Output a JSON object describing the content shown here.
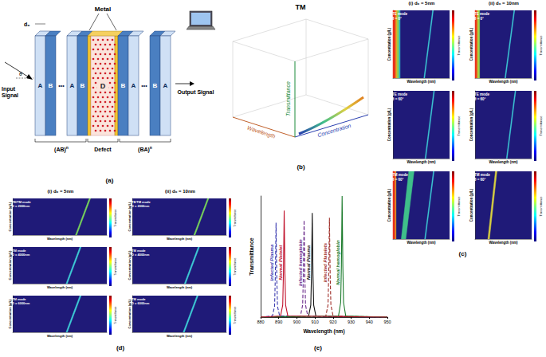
{
  "figure": {
    "a": {
      "label": "(a)",
      "metal": "Metal",
      "input": "Input Signal",
      "output": "Output Signal",
      "left_layers": [
        "A",
        "B",
        "•••",
        "A",
        "B"
      ],
      "defect_layer": "D",
      "right_layers": [
        "B",
        "A",
        "•••",
        "B",
        "A"
      ],
      "left_period": "(AB)",
      "right_period": "(BA)",
      "exponent": "n",
      "defect": "Defect",
      "angle": "θ",
      "thickness": "d₀"
    },
    "b": {
      "label": "(b)",
      "title": "TM",
      "z_axis": "Transmittance",
      "x_axis": "Wavelength",
      "y_axis": "Concentration"
    }
  },
  "chart_data": [
    {
      "type": "heatmap",
      "label": "(c)",
      "columns": [
        "(i) d₀ = 5nm",
        "(ii) d₀ = 10nm"
      ],
      "xlabel": "Wavelength (nm)",
      "ylabel": "Concentration (g/L)",
      "colorbar_label": "Transmittance",
      "xlim": [
        850,
        1000
      ],
      "ylim": [
        0,
        100
      ],
      "tick_labels": false,
      "panels": [
        {
          "title": [
            "TE mode",
            "θ = 0°"
          ],
          "color": "#1f1a78",
          "bands": [
            {
              "lower": [
                850,
                857
              ],
              "upper": [
                850,
                857
              ],
              "color": "#e8301c"
            },
            {
              "lower": [
                857,
                861
              ],
              "upper": [
                857,
                861
              ],
              "color": "#f0a020"
            },
            {
              "lower": [
                861,
                866
              ],
              "upper": [
                861,
                866
              ],
              "color": "#9ad84a"
            },
            {
              "lower": [
                866,
                869
              ],
              "upper": [
                866,
                869
              ],
              "color": "#2fb0c8"
            },
            {
              "lower": [
                932,
                934
              ],
              "upper": [
                955,
                957
              ],
              "color": "#3fd0d8"
            }
          ]
        },
        {
          "title": [
            "TE mode",
            "θ = 0°"
          ],
          "color": "#1f1a78",
          "bands": [
            {
              "lower": [
                850,
                855
              ],
              "upper": [
                850,
                855
              ],
              "color": "#e8301c"
            },
            {
              "lower": [
                855,
                858
              ],
              "upper": [
                855,
                858
              ],
              "color": "#f0a020"
            },
            {
              "lower": [
                858,
                862
              ],
              "upper": [
                858,
                862
              ],
              "color": "#9ad84a"
            },
            {
              "lower": [
                929,
                931
              ],
              "upper": [
                953,
                955
              ],
              "color": "#3fd0d8"
            }
          ]
        },
        {
          "title": [
            "TE mode",
            "θ = 60°"
          ],
          "color": "#1f1a78",
          "bands": [
            {
              "lower": [
                935,
                937
              ],
              "upper": [
                958,
                960
              ],
              "color": "#3fd0d8"
            }
          ]
        },
        {
          "title": [
            "TE mode",
            "θ = 60°"
          ],
          "color": "#1f1a78",
          "bands": [
            {
              "lower": [
                933,
                935
              ],
              "upper": [
                956,
                958
              ],
              "color": "#3fd0d8"
            }
          ]
        },
        {
          "title": [
            "TM mode",
            "θ = 60°"
          ],
          "color": "#1f1a78",
          "bands": [
            {
              "lower": [
                850,
                856
              ],
              "upper": [
                850,
                856
              ],
              "color": "#e8301c"
            },
            {
              "lower": [
                856,
                858
              ],
              "upper": [
                856,
                858
              ],
              "color": "#f0a020"
            },
            {
              "lower": [
                872,
                884
              ],
              "upper": [
                892,
                906
              ],
              "color": "#3fbf8a"
            },
            {
              "lower": [
                934,
                936
              ],
              "upper": [
                957,
                959
              ],
              "color": "#3fd0d8"
            }
          ]
        },
        {
          "title": [
            "TM mode",
            "θ = 60°"
          ],
          "color": "#1f1a78",
          "bands": [
            {
              "lower": [
                884,
                888
              ],
              "upper": [
                904,
                908
              ],
              "color": "#d8d040"
            }
          ]
        }
      ]
    },
    {
      "type": "heatmap",
      "label": "(d)",
      "columns": [
        "(i) d₀ = 5nm",
        "(ii) d₀ = 10nm"
      ],
      "xlabel": "Wavelength (nm)",
      "ylabel": "Concentration (g/L)",
      "colorbar_label": "Transmittance",
      "xlim": [
        850,
        1000
      ],
      "ylim": [
        0,
        100
      ],
      "tick_labels": false,
      "panels": [
        {
          "title": [
            "TE/TM mode",
            "D = 2000nm"
          ],
          "color": "#1f1a78",
          "bands": [
            {
              "lower": [
                950,
                952
              ],
              "upper": [
                972,
                974
              ],
              "color": "#7ad85a"
            }
          ]
        },
        {
          "title": [
            "TE/TM mode",
            "D = 2000nm"
          ],
          "color": "#1f1a78",
          "bands": [
            {
              "lower": [
                948,
                950
              ],
              "upper": [
                970,
                972
              ],
              "color": "#7ad85a"
            }
          ]
        },
        {
          "title": [
            "TM mode",
            "D = 4000nm"
          ],
          "color": "#1f1a78",
          "bands": [
            {
              "lower": [
                935,
                937
              ],
              "upper": [
                957,
                959
              ],
              "color": "#3fd0d8"
            }
          ]
        },
        {
          "title": [
            "TM mode",
            "D = 4000nm"
          ],
          "color": "#1f1a78",
          "bands": [
            {
              "lower": [
                933,
                935
              ],
              "upper": [
                955,
                957
              ],
              "color": "#3fd0d8"
            }
          ]
        },
        {
          "title": [
            "TM mode",
            "D = 6000nm"
          ],
          "color": "#1f1a78",
          "bands": [
            {
              "lower": [
                935,
                937
              ],
              "upper": [
                957,
                959
              ],
              "color": "#3fd0d8"
            }
          ]
        },
        {
          "title": [
            "TM mode",
            "D = 6000nm"
          ],
          "color": "#1f1a78",
          "bands": [
            {
              "lower": [
                931,
                933
              ],
              "upper": [
                953,
                955
              ],
              "color": "#3fd0d8"
            }
          ]
        }
      ]
    },
    {
      "type": "line",
      "label": "(e)",
      "xlabel": "Wavelength (nm)",
      "ylabel": "Transmittance",
      "xlim": [
        880,
        950
      ],
      "xticks": [
        880,
        890,
        900,
        910,
        920,
        930,
        940,
        950
      ],
      "ylim": [
        0,
        1
      ],
      "tick_labels": "x",
      "grid": false,
      "series": [
        {
          "name": "Infected Plasma",
          "color": "#3b3bb0",
          "line_style": "dashed",
          "x": [
            880,
            886.5,
            887.7,
            888.1,
            888.5,
            888.9,
            889.3,
            890.5,
            950
          ],
          "values": [
            0,
            0.01,
            0.09,
            0.33,
            0.78,
            0.33,
            0.09,
            0.01,
            0
          ]
        },
        {
          "name": "Infected hemoglobin",
          "color": "#6a2a8a",
          "line_style": "dashed",
          "x": [
            880,
            902,
            903.2,
            903.6,
            904,
            904.4,
            904.8,
            906,
            950
          ],
          "values": [
            0,
            0.01,
            0.1,
            0.34,
            0.8,
            0.34,
            0.1,
            0.01,
            0
          ]
        },
        {
          "name": "Normal Plasma",
          "color": "#111111",
          "line_style": "solid",
          "x": [
            880,
            906.5,
            907.7,
            908.1,
            908.5,
            908.9,
            909.3,
            910.5,
            950
          ],
          "values": [
            0,
            0.01,
            0.1,
            0.36,
            0.86,
            0.36,
            0.1,
            0.01,
            0
          ]
        },
        {
          "name": "Infected Platelets",
          "color": "#a0302a",
          "line_style": "dashed",
          "x": [
            880,
            916,
            917.2,
            917.6,
            918,
            918.4,
            918.8,
            920,
            950
          ],
          "values": [
            0,
            0.01,
            0.1,
            0.35,
            0.82,
            0.35,
            0.1,
            0.01,
            0
          ]
        },
        {
          "name": "Normal hemoglobin",
          "color": "#1a7a2a",
          "line_style": "solid",
          "x": [
            880,
            923,
            924.2,
            924.6,
            925,
            925.4,
            925.8,
            927,
            950
          ],
          "values": [
            0,
            0.01,
            0.12,
            0.42,
            1,
            0.42,
            0.12,
            0.01,
            0
          ]
        },
        {
          "name": "Normal Platelet",
          "color": "#c0102a",
          "line_style": "solid",
          "x": [
            880,
            891,
            892.2,
            892.6,
            893,
            893.4,
            893.8,
            895,
            950
          ],
          "values": [
            0,
            0.01,
            0.1,
            0.37,
            0.88,
            0.37,
            0.1,
            0.01,
            0
          ]
        }
      ]
    }
  ]
}
